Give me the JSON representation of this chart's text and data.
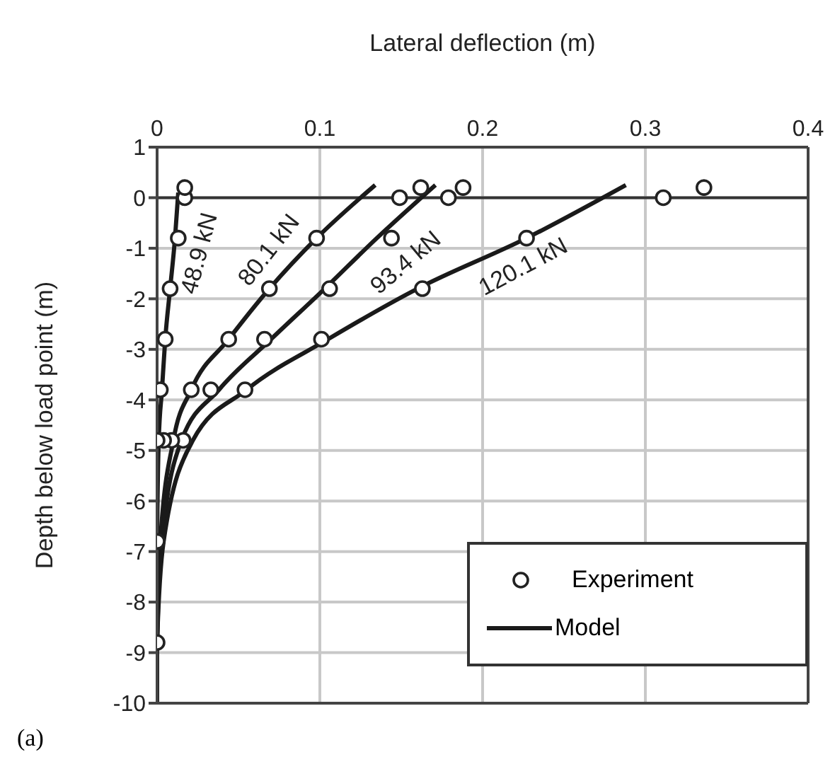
{
  "chart_data": {
    "type": "scatter",
    "xlabel": "Lateral deflection (m)",
    "ylabel": "Depth below load point (m)",
    "xlim": [
      0,
      0.4
    ],
    "xticks": [
      0,
      0.1,
      0.2,
      0.3,
      0.4
    ],
    "ylim": [
      -10,
      1
    ],
    "yticks": [
      1,
      0,
      -1,
      -2,
      -3,
      -4,
      -5,
      -6,
      -7,
      -8,
      -9,
      -10
    ],
    "grid": true,
    "legend": "bottom right",
    "marker": "circle",
    "ref_lines": [
      {
        "axis": "y",
        "value": 0,
        "color": "#333333"
      }
    ],
    "series": [
      {
        "name": "Experiment",
        "color": "#222222",
        "x": [
          0.017,
          0.017,
          0.013,
          0.008,
          0.005,
          0.002,
          0.016,
          0.009,
          0.004,
          0,
          0,
          0,
          0.149,
          0.162,
          0.098,
          0.069,
          0.044,
          0.021,
          0.179,
          0.188,
          0.144,
          0.106,
          0.066,
          0.033,
          0.311,
          0.336,
          0.227,
          0.163,
          0.101,
          0.054
        ],
        "values": [
          0,
          0.2,
          -0.8,
          -1.8,
          -2.8,
          -3.8,
          -4.8,
          -4.8,
          -4.8,
          -4.8,
          -6.8,
          -8.8,
          0,
          0.2,
          -0.8,
          -1.8,
          -2.8,
          -3.8,
          0,
          0.2,
          -0.8,
          -1.8,
          -2.8,
          -3.8,
          0,
          0.2,
          -0.8,
          -1.8,
          -2.8,
          -3.8
        ]
      },
      {
        "name": "48.9 kN",
        "type": "line",
        "color": "#1a1a1a",
        "marker": "none",
        "line_style": "solid",
        "x": [
          0.013,
          0.011,
          0.008,
          0.005,
          0.003,
          0.001,
          0,
          0,
          0
        ],
        "values": [
          0.1,
          -0.8,
          -1.8,
          -2.8,
          -3.8,
          -4.8,
          -6.8,
          -8.8,
          -10
        ]
      },
      {
        "name": "80.1 kN",
        "type": "line",
        "color": "#1a1a1a",
        "marker": "none",
        "line_style": "solid",
        "x": [
          0.134,
          0.098,
          0.069,
          0.044,
          0.021,
          0.01,
          0.002,
          0,
          0
        ],
        "values": [
          0.25,
          -0.8,
          -1.8,
          -2.8,
          -3.8,
          -4.8,
          -6.8,
          -8.8,
          -10
        ]
      },
      {
        "name": "93.4 kN",
        "type": "line",
        "color": "#1a1a1a",
        "marker": "none",
        "line_style": "solid",
        "x": [
          0.171,
          0.135,
          0.103,
          0.07,
          0.038,
          0.015,
          0.003,
          0,
          0
        ],
        "values": [
          0.25,
          -0.8,
          -1.8,
          -2.8,
          -3.8,
          -4.8,
          -6.8,
          -8.8,
          -10
        ]
      },
      {
        "name": "120.1 kN",
        "type": "line",
        "color": "#1a1a1a",
        "marker": "none",
        "line_style": "solid",
        "x": [
          0.288,
          0.227,
          0.16,
          0.105,
          0.055,
          0.022,
          0.004,
          0,
          0
        ],
        "values": [
          0.25,
          -0.8,
          -1.8,
          -2.8,
          -3.8,
          -4.8,
          -6.8,
          -8.8,
          -10
        ]
      }
    ],
    "annotations": [
      "Model",
      "(a)"
    ]
  }
}
